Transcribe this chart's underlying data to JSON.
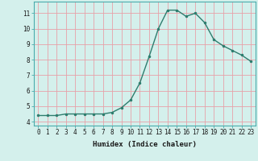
{
  "x": [
    0,
    1,
    2,
    3,
    4,
    5,
    6,
    7,
    8,
    9,
    10,
    11,
    12,
    13,
    14,
    15,
    16,
    17,
    18,
    19,
    20,
    21,
    22,
    23
  ],
  "y": [
    4.4,
    4.4,
    4.4,
    4.5,
    4.5,
    4.5,
    4.5,
    4.5,
    4.6,
    4.9,
    5.4,
    6.5,
    8.2,
    10.0,
    11.2,
    11.2,
    10.8,
    11.0,
    10.4,
    9.3,
    8.9,
    8.6,
    8.3,
    7.9
  ],
  "line_color": "#2e7d6e",
  "marker": ".",
  "marker_size": 3,
  "bg_color": "#d4f0ec",
  "grid_color": "#e8a0a8",
  "xlabel": "Humidex (Indice chaleur)",
  "xlim": [
    -0.5,
    23.5
  ],
  "ylim": [
    3.75,
    11.75
  ],
  "xticks": [
    0,
    1,
    2,
    3,
    4,
    5,
    6,
    7,
    8,
    9,
    10,
    11,
    12,
    13,
    14,
    15,
    16,
    17,
    18,
    19,
    20,
    21,
    22,
    23
  ],
  "yticks": [
    4,
    5,
    6,
    7,
    8,
    9,
    10,
    11
  ],
  "tick_fontsize": 5.5,
  "label_fontsize": 6.5,
  "line_width": 1.0,
  "spine_color": "#4aacac"
}
